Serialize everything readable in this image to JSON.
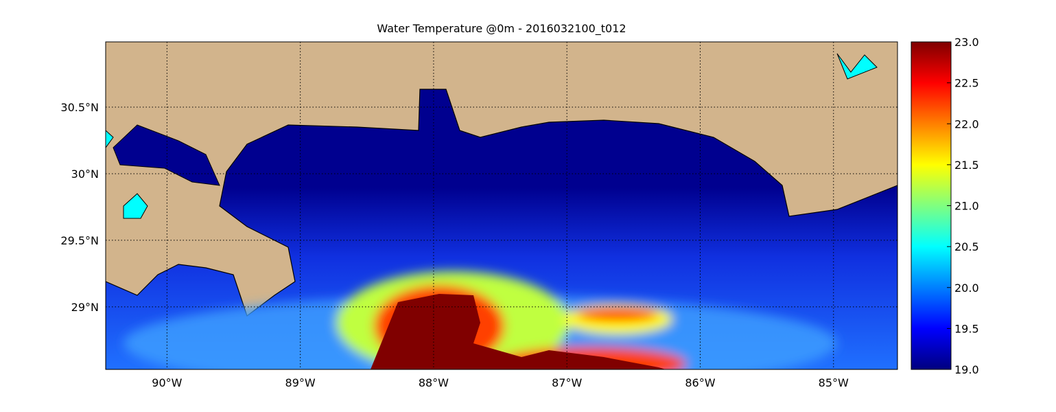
{
  "map": {
    "title": "Water Temperature @0m - 2016032100_t012",
    "xlim": [
      -90.46,
      -84.52
    ],
    "ylim": [
      28.53,
      30.99
    ],
    "xticks": [
      {
        "value": -90,
        "label": "90°W"
      },
      {
        "value": -89,
        "label": "89°W"
      },
      {
        "value": -88,
        "label": "88°W"
      },
      {
        "value": -87,
        "label": "87°W"
      },
      {
        "value": -86,
        "label": "86°W"
      },
      {
        "value": -85,
        "label": "85°W"
      }
    ],
    "yticks": [
      {
        "value": 29,
        "label": "29°N"
      },
      {
        "value": 29.5,
        "label": "29.5°N"
      },
      {
        "value": 30,
        "label": "30°N"
      },
      {
        "value": 30.5,
        "label": "30.5°N"
      }
    ],
    "grid": true,
    "colorbar": {
      "colormap": "jet",
      "range": [
        19,
        23
      ],
      "ticks": [
        {
          "value": 19,
          "label": "19.0"
        },
        {
          "value": 19.5,
          "label": "19.5"
        },
        {
          "value": 20,
          "label": "20.0"
        },
        {
          "value": 20.5,
          "label": "20.5"
        },
        {
          "value": 21,
          "label": "21.0"
        },
        {
          "value": 21.5,
          "label": "21.5"
        },
        {
          "value": 22,
          "label": "22.0"
        },
        {
          "value": 22.5,
          "label": "22.5"
        },
        {
          "value": 23,
          "label": "23.0"
        }
      ]
    }
  }
}
